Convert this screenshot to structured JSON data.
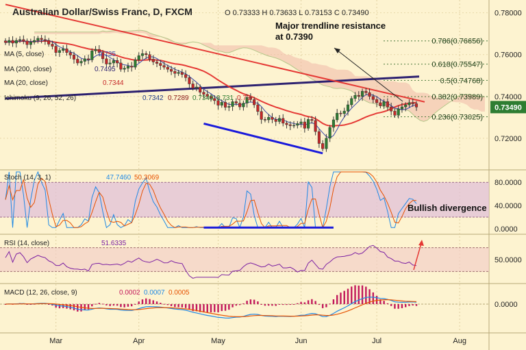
{
  "header": {
    "title": "Australian Dollar/Swiss Franc, D, FXCM",
    "ohlc": "O 0.73333 H 0.73633 L 0.73153 C 0.73490"
  },
  "legend": {
    "ma5": "MA (5, close)",
    "ma5_val": "0.735",
    "ma200": "MA (200, close)",
    "ma200_val": "0.7495",
    "ma20": "MA (20, close)",
    "ma20_val": "0.7344",
    "ichimoku": "Ichimoku (9, 26, 52, 26)",
    "ichi_vals": [
      "0.7342",
      "0.7289",
      "0.7349",
      "0.731",
      "0.73"
    ]
  },
  "annotations": {
    "resistance": "Major trendline resistance",
    "resistance2": "at 0.7390",
    "divergence": "Bullish divergence"
  },
  "fib_levels": [
    {
      "label": "0.786(0.76656)",
      "value": 0.76656
    },
    {
      "label": "0.618(0.75547)",
      "value": 0.75547
    },
    {
      "label": "0.5(0.74768)",
      "value": 0.74768
    },
    {
      "label": "0.382(0.73989)",
      "value": 0.73989
    },
    {
      "label": "0.236(0.73025)",
      "value": 0.73025
    }
  ],
  "price_badge": "0.73490",
  "colors": {
    "background": "#fdf3d0",
    "candle_up": "#2e7d32",
    "candle_down": "#c62828",
    "ma20": "#e53935",
    "ma200": "#2d2170",
    "ma5": "#3949ab",
    "trendline": "#e53935",
    "support_line": "#1a1adb",
    "cloud_green": "#c8dca0",
    "cloud_red": "#f0b8a8",
    "osc_band": "#e0c0d8",
    "price_badge": "#2e7d32"
  },
  "stoch": {
    "label": "Stoch (14, 3, 1)",
    "k": "47.7460",
    "d": "50.3069",
    "ticks": [
      {
        "label": "80.0000",
        "v": 80
      },
      {
        "label": "40.0000",
        "v": 40
      },
      {
        "label": "0.0000",
        "v": 0
      }
    ]
  },
  "rsi": {
    "label": "RSI (14, close)",
    "val": "51.6335",
    "ticks": [
      {
        "label": "50.0000",
        "v": 50
      }
    ]
  },
  "macd": {
    "label": "MACD (12, 26, close, 9)",
    "v1": "0.0002",
    "v2": "0.0007",
    "v3": "0.0005",
    "ticks": [
      {
        "label": "0.0000",
        "v": 0
      }
    ]
  },
  "chart_data": {
    "type": "candlestick",
    "symbol": "AUD/CHF",
    "timeframe": "D",
    "x_ticks": [
      {
        "label": "Mar",
        "idx": 14
      },
      {
        "label": "Apr",
        "idx": 37
      },
      {
        "label": "May",
        "idx": 59
      },
      {
        "label": "Jun",
        "idx": 82
      },
      {
        "label": "Jul",
        "idx": 103
      },
      {
        "label": "Aug",
        "idx": 126
      }
    ],
    "y_ticks": [
      0.78,
      0.76,
      0.74,
      0.72
    ],
    "ylim": [
      0.7075,
      0.7835
    ],
    "closes": [
      0.7658,
      0.7668,
      0.7655,
      0.7668,
      0.7672,
      0.7665,
      0.7648,
      0.766,
      0.7668,
      0.7678,
      0.7672,
      0.7668,
      0.765,
      0.764,
      0.761,
      0.762,
      0.7628,
      0.761,
      0.7598,
      0.7578,
      0.756,
      0.7568,
      0.758,
      0.7575,
      0.7618,
      0.7625,
      0.761,
      0.758,
      0.7555,
      0.756,
      0.7572,
      0.756,
      0.753,
      0.7535,
      0.7545,
      0.754,
      0.7575,
      0.7595,
      0.7605,
      0.76,
      0.7578,
      0.7565,
      0.7558,
      0.7548,
      0.754,
      0.753,
      0.752,
      0.751,
      0.7515,
      0.7505,
      0.749,
      0.746,
      0.744,
      0.7445,
      0.742,
      0.741,
      0.74,
      0.739,
      0.738,
      0.7358,
      0.7372,
      0.7348,
      0.7352,
      0.7375,
      0.7368,
      0.735,
      0.7368,
      0.7395,
      0.7385,
      0.736,
      0.7328,
      0.729,
      0.7288,
      0.73,
      0.729,
      0.728,
      0.7295,
      0.7272,
      0.7265,
      0.726,
      0.7262,
      0.727,
      0.7278,
      0.7248,
      0.729,
      0.7285,
      0.7232,
      0.7175,
      0.715,
      0.72,
      0.7252,
      0.7288,
      0.732,
      0.7318,
      0.733,
      0.736,
      0.739,
      0.7405,
      0.74,
      0.7425,
      0.7418,
      0.74,
      0.7385,
      0.737,
      0.7355,
      0.7375,
      0.735,
      0.733,
      0.731,
      0.734,
      0.735,
      0.736,
      0.737,
      0.7365,
      0.7349
    ],
    "ma200_levels": {
      "start": 0.739,
      "end": 0.7495
    },
    "trendline_resistance": {
      "from": 0.784,
      "to": 0.7374
    },
    "support_line": {
      "from": 0.727,
      "to": 0.7128
    }
  }
}
